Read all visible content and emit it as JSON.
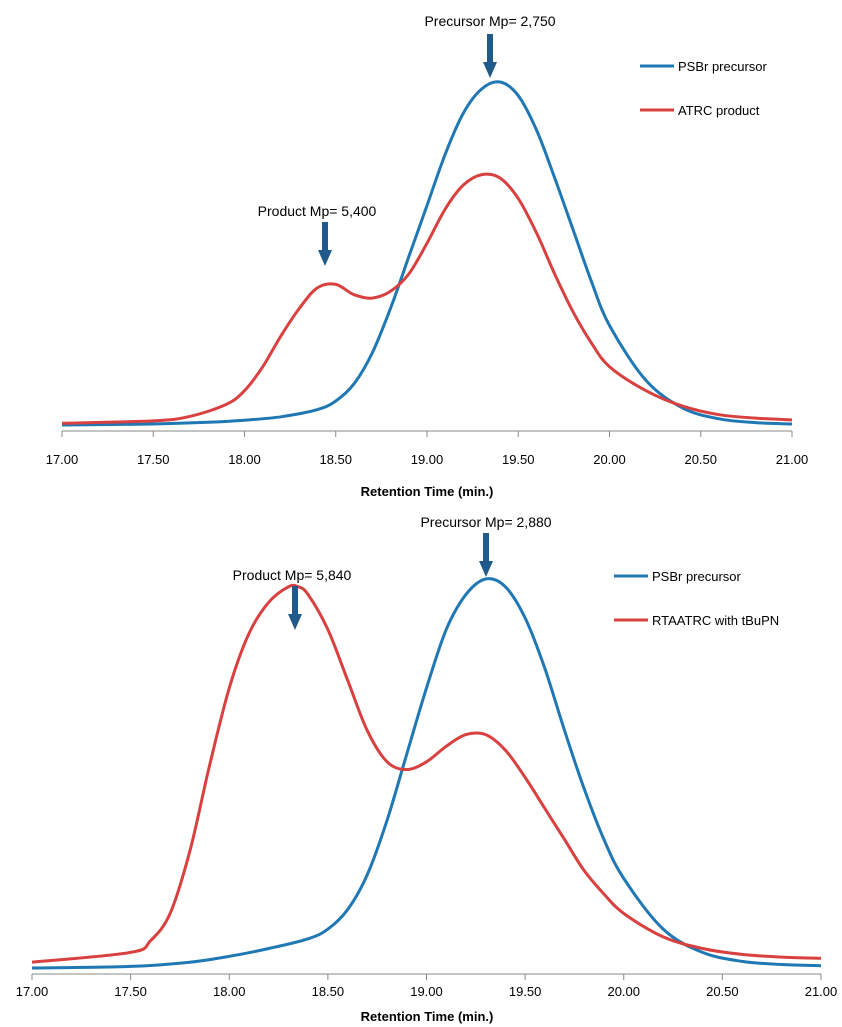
{
  "chart_data": [
    {
      "type": "line",
      "xlabel": "Retention Time (min.)",
      "ylabel": "",
      "xlim": [
        17,
        21
      ],
      "ylim": [
        0,
        1
      ],
      "grid": false,
      "legend_position": "top-right",
      "x_ticks": [
        "17.00",
        "17.50",
        "18.00",
        "18.50",
        "19.00",
        "19.50",
        "20.00",
        "20.50",
        "21.00"
      ],
      "series": [
        {
          "name": "PSBr precursor",
          "color": "#1f77b4",
          "x": [
            17.0,
            17.5,
            17.8,
            18.0,
            18.2,
            18.4,
            18.5,
            18.6,
            18.7,
            18.8,
            18.9,
            19.0,
            19.1,
            19.2,
            19.3,
            19.4,
            19.5,
            19.6,
            19.7,
            19.8,
            19.9,
            20.0,
            20.2,
            20.4,
            20.6,
            20.8,
            21.0
          ],
          "y": [
            0.0,
            0.003,
            0.008,
            0.014,
            0.024,
            0.045,
            0.07,
            0.12,
            0.21,
            0.34,
            0.49,
            0.64,
            0.79,
            0.91,
            0.98,
            1.0,
            0.96,
            0.86,
            0.72,
            0.57,
            0.42,
            0.29,
            0.13,
            0.05,
            0.018,
            0.007,
            0.003
          ]
        },
        {
          "name": "ATRC product",
          "color": "#d94040",
          "x": [
            17.0,
            17.5,
            17.7,
            17.9,
            18.0,
            18.1,
            18.2,
            18.3,
            18.4,
            18.5,
            18.6,
            18.7,
            18.8,
            18.9,
            19.0,
            19.1,
            19.2,
            19.3,
            19.4,
            19.5,
            19.6,
            19.7,
            19.8,
            19.9,
            20.0,
            20.2,
            20.4,
            20.6,
            20.8,
            21.0
          ],
          "y": [
            0.005,
            0.012,
            0.025,
            0.06,
            0.1,
            0.17,
            0.26,
            0.34,
            0.4,
            0.41,
            0.38,
            0.37,
            0.39,
            0.44,
            0.53,
            0.63,
            0.7,
            0.73,
            0.72,
            0.66,
            0.56,
            0.44,
            0.33,
            0.24,
            0.17,
            0.1,
            0.055,
            0.03,
            0.02,
            0.015
          ]
        }
      ],
      "annotations": [
        {
          "text": "Precursor Mp= 2,750",
          "x": 19.37
        },
        {
          "text": "Product Mp= 5,400",
          "x": 18.5
        }
      ]
    },
    {
      "type": "line",
      "xlabel": "Retention Time (min.)",
      "ylabel": "",
      "xlim": [
        17,
        21
      ],
      "ylim": [
        0,
        1
      ],
      "grid": false,
      "legend_position": "top-right",
      "x_ticks": [
        "17.00",
        "17.50",
        "18.00",
        "18.50",
        "19.00",
        "19.50",
        "20.00",
        "20.50",
        "21.00"
      ],
      "series": [
        {
          "name": "PSBr precursor",
          "color": "#1f77b4",
          "x": [
            17.0,
            17.5,
            17.8,
            18.0,
            18.2,
            18.4,
            18.5,
            18.6,
            18.7,
            18.8,
            18.9,
            19.0,
            19.1,
            19.2,
            19.3,
            19.4,
            19.5,
            19.6,
            19.7,
            19.8,
            19.9,
            20.0,
            20.2,
            20.4,
            20.6,
            20.8,
            21.0
          ],
          "y": [
            0.0,
            0.004,
            0.015,
            0.03,
            0.05,
            0.075,
            0.1,
            0.15,
            0.24,
            0.38,
            0.55,
            0.72,
            0.87,
            0.96,
            1.0,
            0.98,
            0.9,
            0.77,
            0.61,
            0.46,
            0.33,
            0.23,
            0.1,
            0.04,
            0.017,
            0.009,
            0.006
          ]
        },
        {
          "name": "RTAATRC with tBuPN",
          "color": "#d94040",
          "x": [
            17.0,
            17.5,
            17.6,
            17.7,
            17.8,
            17.9,
            18.0,
            18.1,
            18.2,
            18.3,
            18.35,
            18.4,
            18.5,
            18.6,
            18.7,
            18.8,
            18.9,
            19.0,
            19.1,
            19.2,
            19.3,
            19.4,
            19.5,
            19.6,
            19.7,
            19.8,
            19.9,
            20.0,
            20.2,
            20.4,
            20.6,
            20.8,
            21.0
          ],
          "y": [
            0.015,
            0.04,
            0.07,
            0.14,
            0.3,
            0.52,
            0.72,
            0.86,
            0.94,
            0.98,
            0.98,
            0.96,
            0.87,
            0.74,
            0.61,
            0.53,
            0.51,
            0.53,
            0.57,
            0.6,
            0.6,
            0.56,
            0.49,
            0.41,
            0.33,
            0.25,
            0.19,
            0.14,
            0.08,
            0.05,
            0.035,
            0.028,
            0.025
          ]
        }
      ],
      "annotations": [
        {
          "text": "Precursor Mp= 2,880",
          "x": 19.3
        },
        {
          "text": "Product Mp= 5,840",
          "x": 18.35
        }
      ]
    }
  ]
}
